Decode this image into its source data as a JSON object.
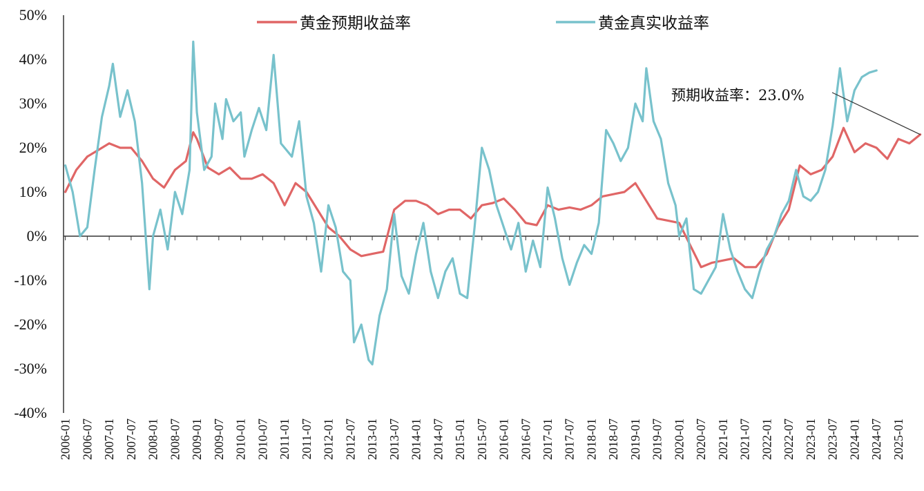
{
  "chart_data": {
    "type": "line",
    "ylim": [
      -40,
      50
    ],
    "y_ticks": [
      "50%",
      "40%",
      "30%",
      "20%",
      "10%",
      "0%",
      "-10%",
      "-20%",
      "-30%",
      "-40%"
    ],
    "x_ticks": [
      "2006-01",
      "2006-07",
      "2007-01",
      "2007-07",
      "2008-01",
      "2008-07",
      "2009-01",
      "2009-07",
      "2010-01",
      "2010-07",
      "2011-01",
      "2011-07",
      "2012-01",
      "2012-07",
      "2013-01",
      "2013-07",
      "2014-01",
      "2014-07",
      "2015-01",
      "2015-07",
      "2016-01",
      "2016-07",
      "2017-01",
      "2017-07",
      "2018-01",
      "2018-07",
      "2019-01",
      "2019-07",
      "2020-01",
      "2020-07",
      "2021-01",
      "2021-07",
      "2022-01",
      "2022-07",
      "2023-01",
      "2023-07",
      "2024-01",
      "2024-07",
      "2025-01"
    ],
    "legend_position": "top",
    "series": [
      {
        "name": "黄金预期收益率",
        "color": "#e06666",
        "points": [
          [
            "2006-01",
            10
          ],
          [
            "2006-04",
            15
          ],
          [
            "2006-07",
            18
          ],
          [
            "2006-10",
            19.5
          ],
          [
            "2007-01",
            21
          ],
          [
            "2007-04",
            20
          ],
          [
            "2007-07",
            20
          ],
          [
            "2007-10",
            17
          ],
          [
            "2008-01",
            13
          ],
          [
            "2008-04",
            11
          ],
          [
            "2008-07",
            15
          ],
          [
            "2008-10",
            17
          ],
          [
            "2008-12",
            23.5
          ],
          [
            "2009-01",
            22
          ],
          [
            "2009-04",
            15.5
          ],
          [
            "2009-07",
            14
          ],
          [
            "2009-10",
            15.5
          ],
          [
            "2010-01",
            13
          ],
          [
            "2010-04",
            13
          ],
          [
            "2010-07",
            14
          ],
          [
            "2010-10",
            12
          ],
          [
            "2011-01",
            7
          ],
          [
            "2011-04",
            12
          ],
          [
            "2011-07",
            10
          ],
          [
            "2011-10",
            6
          ],
          [
            "2012-01",
            2
          ],
          [
            "2012-04",
            0
          ],
          [
            "2012-07",
            -3
          ],
          [
            "2012-10",
            -4.5
          ],
          [
            "2013-01",
            -4
          ],
          [
            "2013-04",
            -3.5
          ],
          [
            "2013-07",
            6
          ],
          [
            "2013-10",
            8
          ],
          [
            "2014-01",
            8
          ],
          [
            "2014-04",
            7
          ],
          [
            "2014-07",
            5
          ],
          [
            "2014-10",
            6
          ],
          [
            "2015-01",
            6
          ],
          [
            "2015-04",
            4
          ],
          [
            "2015-07",
            7
          ],
          [
            "2015-10",
            7.5
          ],
          [
            "2016-01",
            8.5
          ],
          [
            "2016-04",
            6
          ],
          [
            "2016-07",
            3
          ],
          [
            "2016-10",
            2.5
          ],
          [
            "2017-01",
            7
          ],
          [
            "2017-04",
            6
          ],
          [
            "2017-07",
            6.5
          ],
          [
            "2017-10",
            6
          ],
          [
            "2018-01",
            7
          ],
          [
            "2018-04",
            9
          ],
          [
            "2018-07",
            9.5
          ],
          [
            "2018-10",
            10
          ],
          [
            "2019-01",
            12
          ],
          [
            "2019-04",
            8
          ],
          [
            "2019-07",
            4
          ],
          [
            "2019-10",
            3.5
          ],
          [
            "2020-01",
            3
          ],
          [
            "2020-04",
            -2
          ],
          [
            "2020-07",
            -7
          ],
          [
            "2020-10",
            -6
          ],
          [
            "2021-01",
            -5.5
          ],
          [
            "2021-04",
            -5
          ],
          [
            "2021-07",
            -7
          ],
          [
            "2021-10",
            -7
          ],
          [
            "2022-01",
            -4
          ],
          [
            "2022-04",
            2
          ],
          [
            "2022-07",
            6
          ],
          [
            "2022-10",
            16
          ],
          [
            "2023-01",
            14
          ],
          [
            "2023-04",
            15
          ],
          [
            "2023-07",
            18
          ],
          [
            "2023-10",
            24.5
          ],
          [
            "2024-01",
            19
          ],
          [
            "2024-04",
            21
          ],
          [
            "2024-07",
            20
          ],
          [
            "2024-10",
            17.5
          ],
          [
            "2025-01",
            22
          ],
          [
            "2025-04",
            21
          ],
          [
            "2025-07",
            23
          ]
        ]
      },
      {
        "name": "黄金真实收益率",
        "color": "#78c2cc",
        "points": [
          [
            "2006-01",
            16
          ],
          [
            "2006-03",
            10
          ],
          [
            "2006-05",
            0
          ],
          [
            "2006-07",
            2
          ],
          [
            "2006-09",
            15
          ],
          [
            "2006-11",
            27
          ],
          [
            "2007-01",
            34
          ],
          [
            "2007-02",
            39
          ],
          [
            "2007-04",
            27
          ],
          [
            "2007-06",
            33
          ],
          [
            "2007-08",
            26
          ],
          [
            "2007-10",
            12
          ],
          [
            "2007-12",
            -12
          ],
          [
            "2008-01",
            0
          ],
          [
            "2008-03",
            6
          ],
          [
            "2008-05",
            -3
          ],
          [
            "2008-07",
            10
          ],
          [
            "2008-09",
            5
          ],
          [
            "2008-11",
            15
          ],
          [
            "2008-12",
            44
          ],
          [
            "2009-01",
            28
          ],
          [
            "2009-03",
            15
          ],
          [
            "2009-05",
            18
          ],
          [
            "2009-06",
            30
          ],
          [
            "2009-08",
            22
          ],
          [
            "2009-09",
            31
          ],
          [
            "2009-11",
            26
          ],
          [
            "2010-01",
            28
          ],
          [
            "2010-02",
            18
          ],
          [
            "2010-04",
            24
          ],
          [
            "2010-06",
            29
          ],
          [
            "2010-08",
            24
          ],
          [
            "2010-10",
            41
          ],
          [
            "2010-12",
            21
          ],
          [
            "2011-01",
            20
          ],
          [
            "2011-03",
            18
          ],
          [
            "2011-05",
            26
          ],
          [
            "2011-07",
            9
          ],
          [
            "2011-09",
            3
          ],
          [
            "2011-11",
            -8
          ],
          [
            "2012-01",
            7
          ],
          [
            "2012-03",
            2
          ],
          [
            "2012-05",
            -8
          ],
          [
            "2012-07",
            -10
          ],
          [
            "2012-08",
            -24
          ],
          [
            "2012-10",
            -20
          ],
          [
            "2012-12",
            -28
          ],
          [
            "2013-01",
            -29
          ],
          [
            "2013-03",
            -18
          ],
          [
            "2013-05",
            -12
          ],
          [
            "2013-07",
            5
          ],
          [
            "2013-09",
            -9
          ],
          [
            "2013-11",
            -13
          ],
          [
            "2014-01",
            -4
          ],
          [
            "2014-03",
            3
          ],
          [
            "2014-05",
            -8
          ],
          [
            "2014-07",
            -14
          ],
          [
            "2014-09",
            -8
          ],
          [
            "2014-11",
            -5
          ],
          [
            "2015-01",
            -13
          ],
          [
            "2015-03",
            -14
          ],
          [
            "2015-05",
            2
          ],
          [
            "2015-07",
            20
          ],
          [
            "2015-09",
            15
          ],
          [
            "2015-11",
            7
          ],
          [
            "2016-01",
            2
          ],
          [
            "2016-03",
            -3
          ],
          [
            "2016-05",
            3
          ],
          [
            "2016-07",
            -8
          ],
          [
            "2016-09",
            -1
          ],
          [
            "2016-11",
            -7
          ],
          [
            "2017-01",
            11
          ],
          [
            "2017-03",
            4
          ],
          [
            "2017-05",
            -5
          ],
          [
            "2017-07",
            -11
          ],
          [
            "2017-09",
            -6
          ],
          [
            "2017-11",
            -2
          ],
          [
            "2018-01",
            -4
          ],
          [
            "2018-03",
            3
          ],
          [
            "2018-05",
            24
          ],
          [
            "2018-07",
            21
          ],
          [
            "2018-09",
            17
          ],
          [
            "2018-11",
            20
          ],
          [
            "2019-01",
            30
          ],
          [
            "2019-03",
            26
          ],
          [
            "2019-04",
            38
          ],
          [
            "2019-06",
            26
          ],
          [
            "2019-08",
            22
          ],
          [
            "2019-10",
            12
          ],
          [
            "2019-12",
            7
          ],
          [
            "2020-01",
            0
          ],
          [
            "2020-03",
            4
          ],
          [
            "2020-05",
            -12
          ],
          [
            "2020-07",
            -13
          ],
          [
            "2020-09",
            -10
          ],
          [
            "2020-11",
            -7
          ],
          [
            "2021-01",
            5
          ],
          [
            "2021-03",
            -3
          ],
          [
            "2021-05",
            -8
          ],
          [
            "2021-07",
            -12
          ],
          [
            "2021-09",
            -14
          ],
          [
            "2021-11",
            -8
          ],
          [
            "2022-01",
            -3
          ],
          [
            "2022-03",
            0
          ],
          [
            "2022-05",
            5
          ],
          [
            "2022-07",
            8
          ],
          [
            "2022-09",
            15
          ],
          [
            "2022-11",
            9
          ],
          [
            "2023-01",
            8
          ],
          [
            "2023-03",
            10
          ],
          [
            "2023-05",
            15
          ],
          [
            "2023-07",
            25
          ],
          [
            "2023-09",
            38
          ],
          [
            "2023-11",
            26
          ],
          [
            "2024-01",
            33
          ],
          [
            "2024-03",
            36
          ],
          [
            "2024-05",
            37
          ],
          [
            "2024-07",
            37.5
          ]
        ]
      }
    ],
    "annotation": {
      "text": "预期收益率：23.0%",
      "target": [
        "2025-07",
        23
      ]
    }
  }
}
